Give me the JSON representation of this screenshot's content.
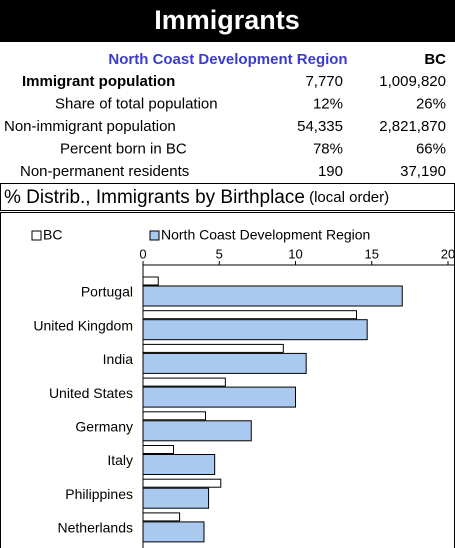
{
  "header": {
    "title": "Immigrants"
  },
  "table": {
    "columns": [
      "North Coast Development Region",
      "BC"
    ],
    "rows": [
      [
        "Immigrant population",
        "7,770",
        "1,009,820"
      ],
      [
        "Share of total population",
        "12%",
        "26%"
      ],
      [
        "Non-immigrant population",
        "54,335",
        "2,821,870"
      ],
      [
        "Percent born in BC",
        "78%",
        "66%"
      ],
      [
        "Non-permanent residents",
        "190",
        "37,190"
      ]
    ]
  },
  "chart_data": {
    "type": "bar",
    "orientation": "horizontal",
    "title": "% Distrib., Immigrants by Birthplace",
    "subtitle": "(local order)",
    "categories": [
      "Portugal",
      "United Kingdom",
      "India",
      "United States",
      "Germany",
      "Italy",
      "Philippines",
      "Netherlands"
    ],
    "series": [
      {
        "name": "BC",
        "color": "#ffffff",
        "values": [
          1.0,
          14.0,
          9.2,
          5.4,
          4.1,
          2.0,
          5.1,
          2.4
        ]
      },
      {
        "name": "North Coast Development Region",
        "color": "#a9c9ef",
        "values": [
          17.0,
          14.7,
          10.7,
          10.0,
          7.1,
          4.7,
          4.3,
          4.0
        ]
      }
    ],
    "xlim": [
      0,
      20
    ],
    "xticks": [
      0,
      5,
      10,
      15,
      20
    ],
    "grid": false
  }
}
